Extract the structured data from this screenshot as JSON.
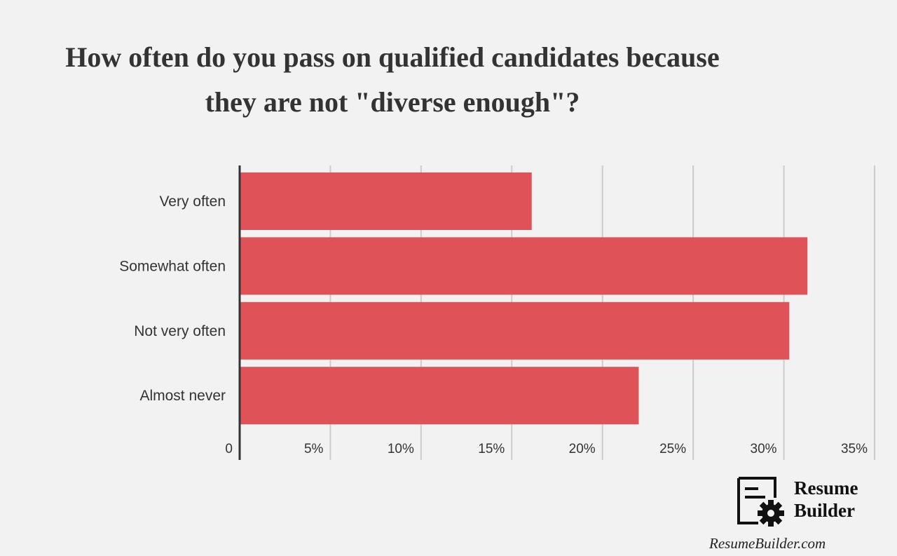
{
  "chart_data": {
    "type": "bar",
    "orientation": "horizontal",
    "title": "How often do you pass on qualified candidates because they are not \"diverse enough\"?",
    "categories": [
      "Very often",
      "Somewhat often",
      "Not very often",
      "Almost never"
    ],
    "values": [
      16.1,
      31.3,
      30.3,
      22.0
    ],
    "unit": "%",
    "xlim": [
      0,
      35
    ],
    "xticks": [
      {
        "value": 0,
        "label": "0"
      },
      {
        "value": 5,
        "label": "5%"
      },
      {
        "value": 10,
        "label": "10%"
      },
      {
        "value": 15,
        "label": "15%"
      },
      {
        "value": 20,
        "label": "20%"
      },
      {
        "value": 25,
        "label": "25%"
      },
      {
        "value": 30,
        "label": "30%"
      },
      {
        "value": 35,
        "label": "35%"
      }
    ],
    "grid": true,
    "bar_color": "#df5257"
  },
  "brand": {
    "name_line1": "Resume",
    "name_line2": "Builder",
    "url": "ResumeBuilder.com",
    "logo_icon": "document-gear-icon"
  }
}
